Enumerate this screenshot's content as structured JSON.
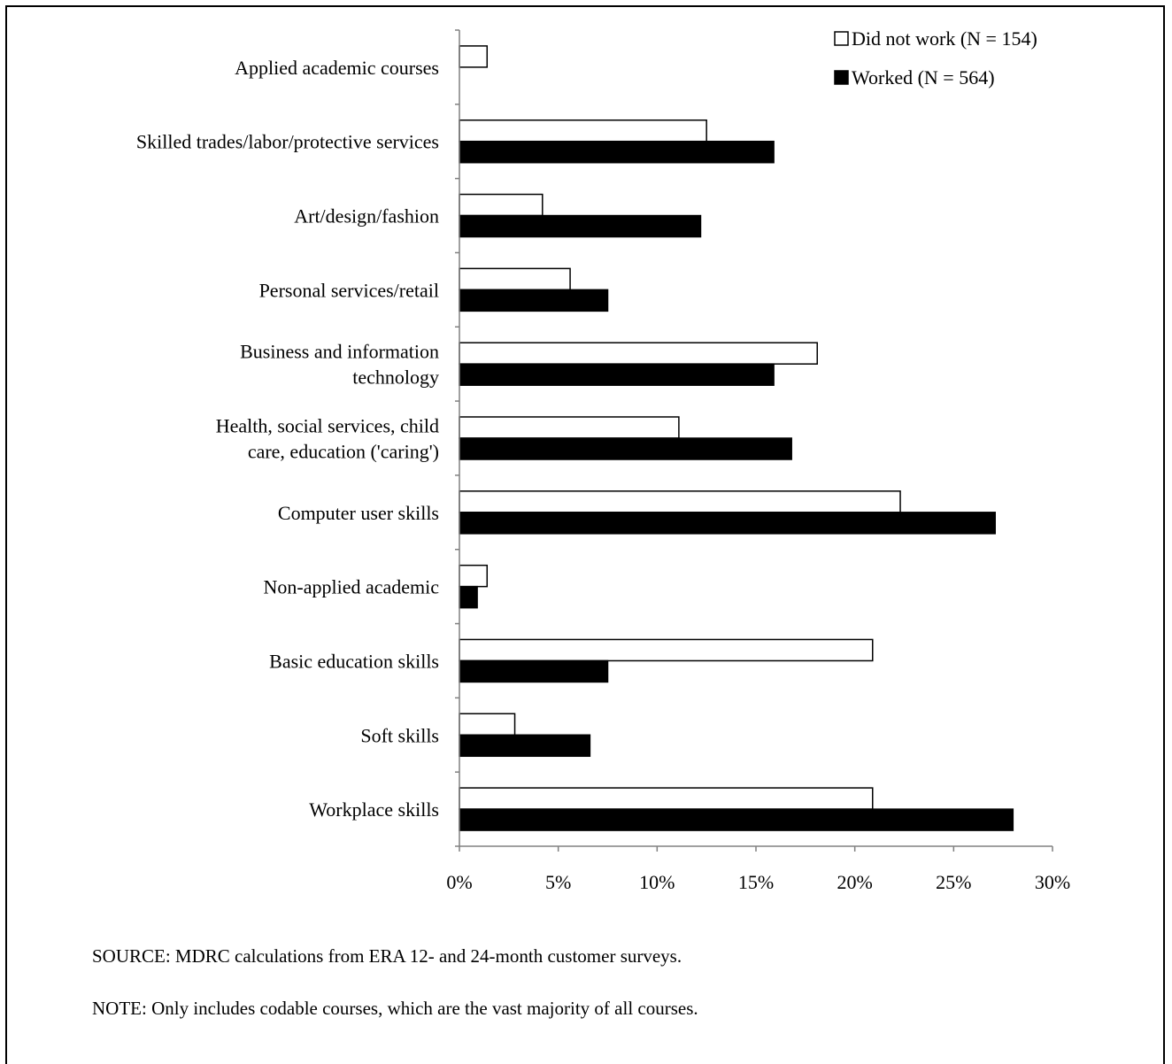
{
  "chart_data": {
    "type": "bar",
    "orientation": "horizontal",
    "categories": [
      [
        "Applied academic courses"
      ],
      [
        "Skilled trades/labor/protective services"
      ],
      [
        "Art/design/fashion"
      ],
      [
        "Personal services/retail"
      ],
      [
        "Business and information",
        "technology"
      ],
      [
        "Health, social services, child",
        "care, education ('caring')"
      ],
      [
        "Computer user skills"
      ],
      [
        "Non-applied academic"
      ],
      [
        "Basic education skills"
      ],
      [
        "Soft skills"
      ],
      [
        "Workplace skills"
      ]
    ],
    "series": [
      {
        "name": "Did not work (N = 154)",
        "fill": "#ffffff",
        "values": [
          1.4,
          12.5,
          4.2,
          5.6,
          18.1,
          11.1,
          22.3,
          1.4,
          20.9,
          2.8,
          20.9
        ]
      },
      {
        "name": "Worked (N = 564)",
        "fill": "#000000",
        "values": [
          0,
          15.9,
          12.2,
          7.5,
          15.9,
          16.8,
          27.1,
          0.9,
          7.5,
          6.6,
          28.0
        ]
      }
    ],
    "xlim": [
      0,
      30
    ],
    "xticks": [
      "0%",
      "5%",
      "10%",
      "15%",
      "20%",
      "25%",
      "30%"
    ],
    "legend_position": "top-right",
    "grid": false
  },
  "notes": {
    "source": "SOURCE: MDRC calculations from ERA 12- and 24-month customer surveys.",
    "note": "NOTE: Only includes codable courses, which are the vast majority of all courses."
  }
}
